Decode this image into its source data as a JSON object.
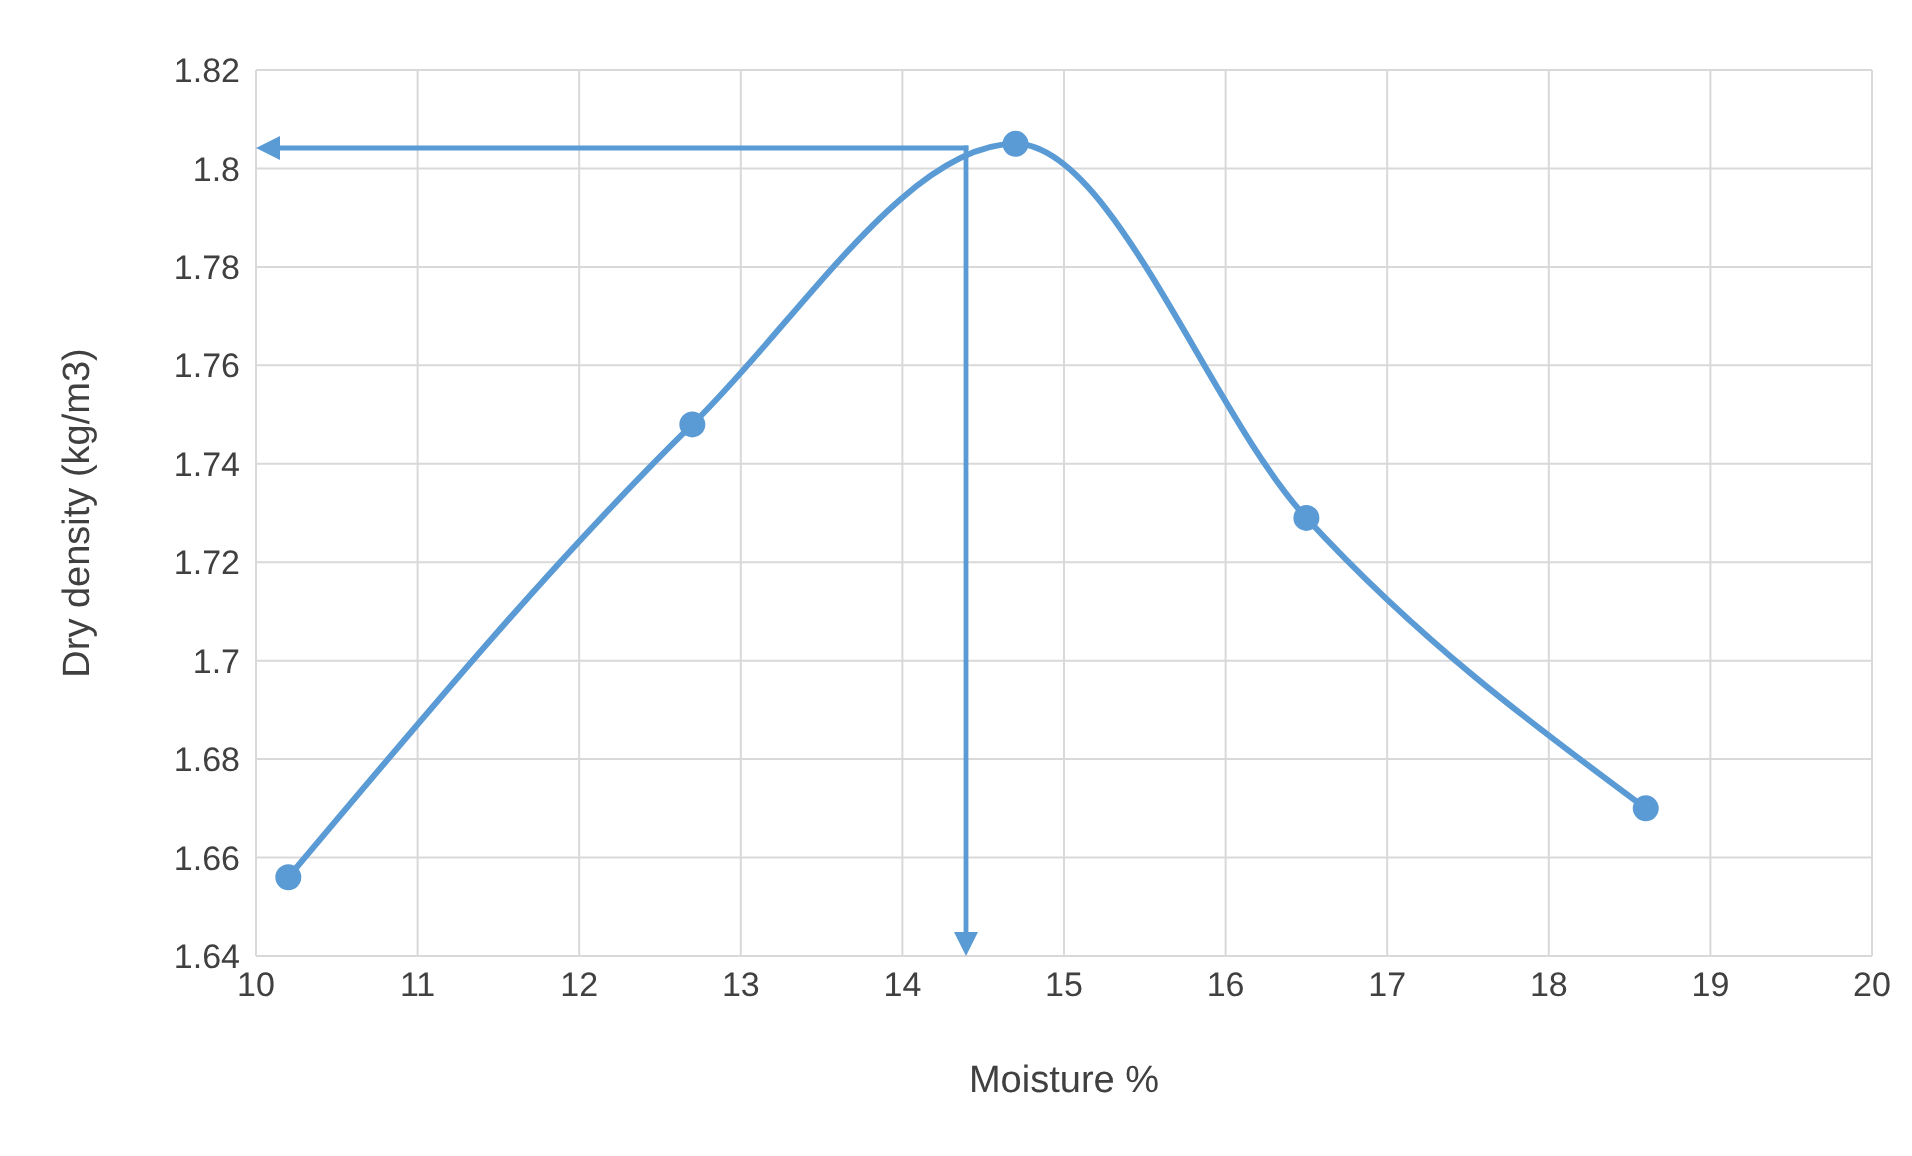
{
  "chart_data": {
    "type": "line",
    "xlabel": "Moisture %",
    "ylabel": "Dry density (kg/m3)",
    "xlim": [
      10,
      20
    ],
    "xticks": [
      10,
      11,
      12,
      13,
      14,
      15,
      16,
      17,
      18,
      19,
      20
    ],
    "ylim": [
      1.64,
      1.82
    ],
    "yticks": [
      1.64,
      1.66,
      1.68,
      1.7,
      1.72,
      1.74,
      1.76,
      1.78,
      1.8,
      1.82
    ],
    "grid": true,
    "marker": "circle",
    "line_style": "solid",
    "series": [
      {
        "color": "#5b9bd5",
        "x": [
          10.2,
          12.7,
          14.7,
          16.5,
          18.6
        ],
        "values": [
          1.656,
          1.748,
          1.805,
          1.729,
          1.67
        ]
      }
    ]
  }
}
